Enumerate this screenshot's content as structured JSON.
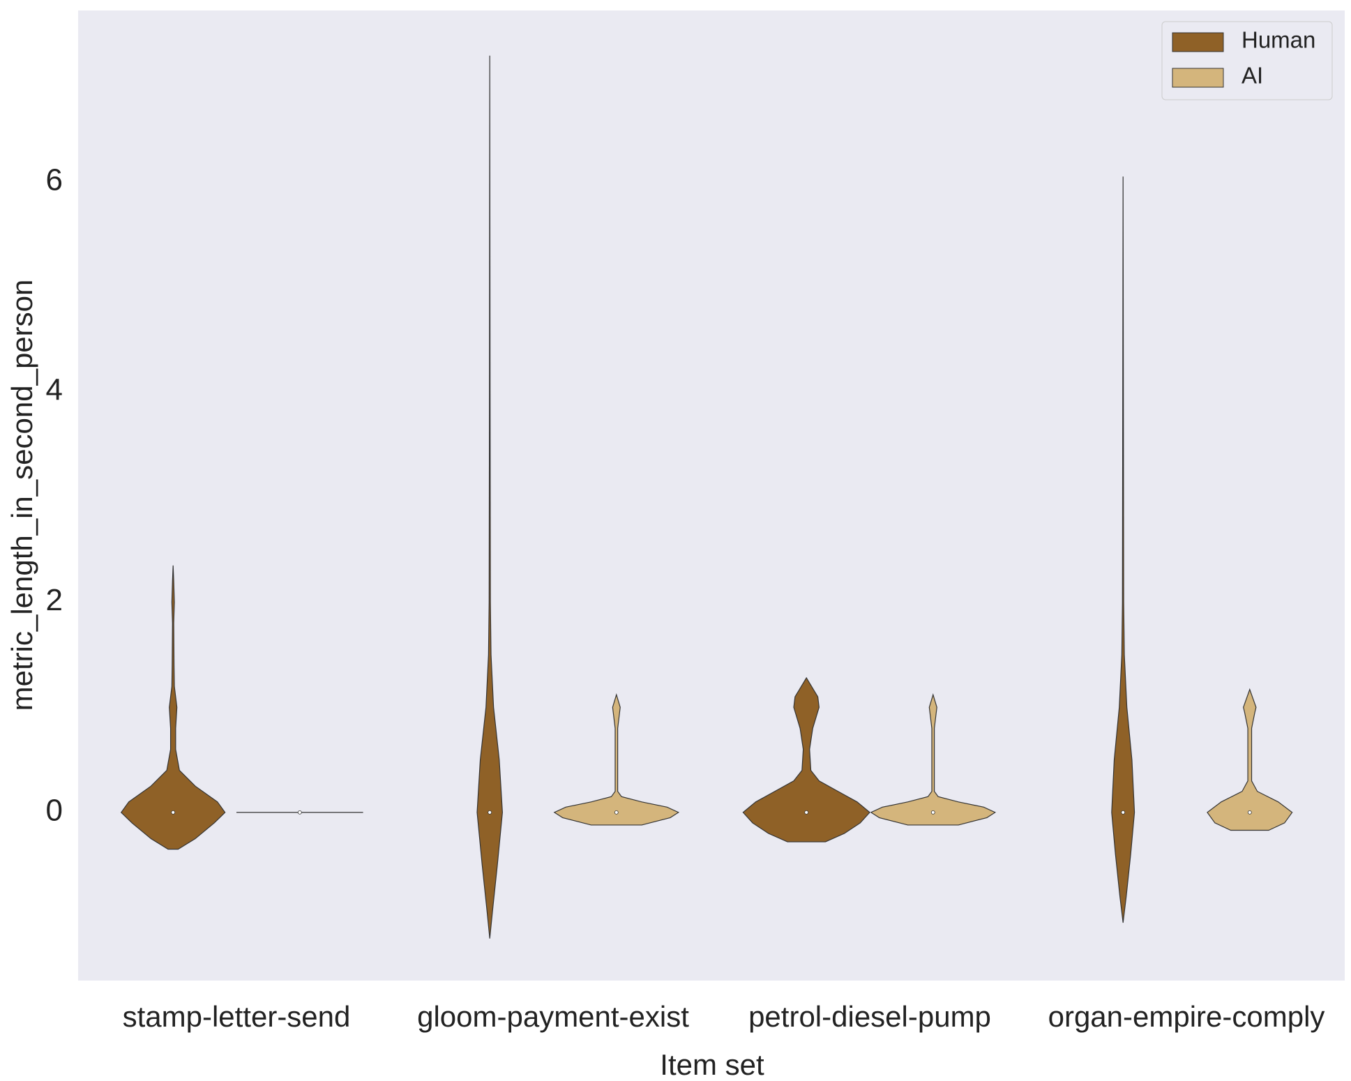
{
  "chart_data": {
    "type": "violin",
    "xlabel": "Item set",
    "ylabel": "metric_length_in_second_person",
    "categories": [
      "stamp-letter-send",
      "gloom-payment-exist",
      "petrol-diesel-pump",
      "organ-empire-comply"
    ],
    "ylim": [
      -1.6,
      7.63
    ],
    "yticks": [
      0,
      2,
      4,
      6
    ],
    "grid": false,
    "legend": "upper right",
    "series": [
      {
        "name": "Human",
        "color": "#8f6127",
        "violins": [
          {
            "median": 0,
            "ys": [
              -0.35,
              -0.25,
              -0.1,
              0,
              0.1,
              0.25,
              0.4,
              0.6,
              0.8,
              1.0,
              1.2,
              1.4,
              1.8,
              2.0,
              2.2,
              2.35
            ],
            "widths": [
              0.08,
              0.35,
              0.65,
              0.82,
              0.7,
              0.35,
              0.1,
              0.04,
              0.04,
              0.06,
              0.02,
              0.015,
              0.01,
              0.02,
              0.01,
              0
            ]
          },
          {
            "median": 0,
            "ys": [
              -1.2,
              -0.9,
              -0.5,
              0,
              0.5,
              1,
              1.5,
              2,
              4,
              7.2
            ],
            "widths": [
              0,
              0.05,
              0.12,
              0.2,
              0.15,
              0.06,
              0.02,
              0.01,
              0.005,
              0
            ]
          },
          {
            "median": 0,
            "ys": [
              -0.28,
              -0.2,
              -0.1,
              0,
              0.1,
              0.2,
              0.3,
              0.4,
              0.6,
              0.8,
              1.0,
              1.1,
              1.28
            ],
            "widths": [
              0.3,
              0.6,
              0.85,
              1.0,
              0.8,
              0.5,
              0.2,
              0.07,
              0.05,
              0.1,
              0.2,
              0.18,
              0
            ]
          },
          {
            "median": 0,
            "ys": [
              -1.05,
              -0.8,
              -0.4,
              0,
              0.5,
              1,
              1.5,
              2,
              4,
              6.05
            ],
            "widths": [
              0,
              0.05,
              0.12,
              0.18,
              0.14,
              0.06,
              0.02,
              0.01,
              0.005,
              0
            ]
          }
        ]
      },
      {
        "name": "AI",
        "color": "#d4b57c",
        "violins": [
          {
            "median": 0,
            "ys": [
              0
            ],
            "widths": [
              1
            ]
          },
          {
            "median": 0,
            "ys": [
              -0.12,
              -0.05,
              0,
              0.05,
              0.1,
              0.15,
              0.2,
              0.8,
              0.95,
              1.0,
              1.12
            ],
            "widths": [
              0.4,
              0.85,
              0.98,
              0.8,
              0.4,
              0.08,
              0.02,
              0.02,
              0.05,
              0.06,
              0
            ]
          },
          {
            "median": 0,
            "ys": [
              -0.12,
              -0.05,
              0,
              0.05,
              0.1,
              0.15,
              0.2,
              0.8,
              0.95,
              1.0,
              1.12
            ],
            "widths": [
              0.4,
              0.85,
              0.98,
              0.8,
              0.4,
              0.08,
              0.02,
              0.02,
              0.05,
              0.06,
              0
            ]
          },
          {
            "median": 0,
            "ys": [
              -0.17,
              -0.1,
              0,
              0.1,
              0.2,
              0.3,
              0.8,
              0.95,
              1.0,
              1.17
            ],
            "widths": [
              0.3,
              0.55,
              0.67,
              0.45,
              0.12,
              0.03,
              0.03,
              0.08,
              0.1,
              0
            ]
          }
        ]
      }
    ]
  }
}
